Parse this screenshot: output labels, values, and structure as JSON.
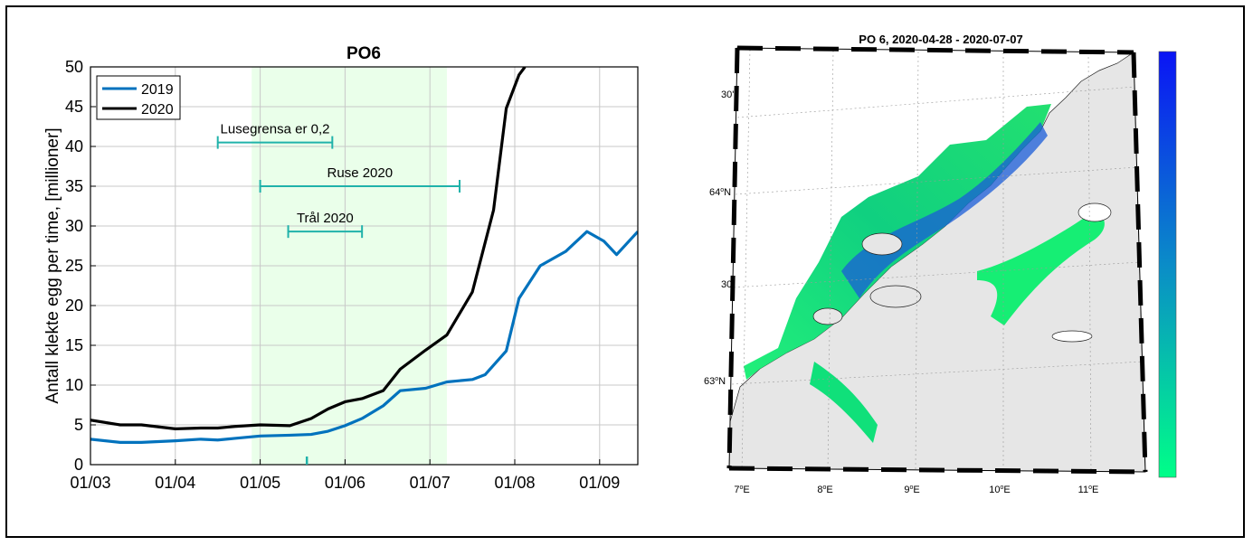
{
  "chart_data": [
    {
      "type": "line",
      "title": "PO6",
      "xlabel": "",
      "ylabel": "Antall klekte egg per time, [millioner]",
      "xlim": [
        0,
        6.45
      ],
      "ylim": [
        0,
        50
      ],
      "x_tick_labels": [
        "01/03",
        "01/04",
        "01/05",
        "01/06",
        "01/07",
        "01/08",
        "01/09"
      ],
      "y_tick_labels": [
        "0",
        "5",
        "10",
        "15",
        "20",
        "25",
        "30",
        "35",
        "40",
        "45",
        "50"
      ],
      "grid": true,
      "legend_position": "top-left",
      "series": [
        {
          "name": "2019",
          "color": "#0072bd",
          "x": [
            0,
            0.35,
            0.6,
            1.0,
            1.3,
            1.5,
            1.7,
            2.0,
            2.35,
            2.6,
            2.8,
            3.0,
            3.2,
            3.45,
            3.65,
            3.95,
            4.2,
            4.5,
            4.65,
            4.9,
            5.05,
            5.3,
            5.6,
            5.85,
            6.05,
            6.2,
            6.45
          ],
          "y": [
            3.2,
            2.8,
            2.8,
            3.0,
            3.2,
            3.1,
            3.3,
            3.6,
            3.7,
            3.8,
            4.2,
            4.9,
            5.8,
            7.4,
            9.3,
            9.6,
            10.4,
            10.7,
            11.3,
            14.3,
            20.9,
            25.0,
            26.8,
            29.3,
            28.1,
            26.4,
            29.3
          ]
        },
        {
          "name": "2020",
          "color": "#000000",
          "x": [
            0,
            0.35,
            0.6,
            1.0,
            1.3,
            1.5,
            1.7,
            2.0,
            2.35,
            2.6,
            2.8,
            3.0,
            3.2,
            3.45,
            3.65,
            3.95,
            4.2,
            4.5,
            4.75,
            4.9,
            5.05,
            5.12
          ],
          "y": [
            5.6,
            5.0,
            5.0,
            4.5,
            4.6,
            4.6,
            4.8,
            5.0,
            4.9,
            5.8,
            7.0,
            7.9,
            8.3,
            9.3,
            12.0,
            14.4,
            16.3,
            21.7,
            32.0,
            44.8,
            49.0,
            50.0
          ]
        }
      ],
      "shaded_period": {
        "x": [
          1.9,
          4.2
        ],
        "color": "#e6ffe6"
      },
      "intervals": [
        {
          "label": "Lusegrensa er 0,2",
          "x0": 1.5,
          "x1": 2.85,
          "y": 40.5
        },
        {
          "label": "Ruse 2020",
          "x0": 2.0,
          "x1": 4.35,
          "y": 35.0
        },
        {
          "label": "Trål 2020",
          "x0": 2.33,
          "x1": 3.2,
          "y": 29.3
        }
      ],
      "axis_marker_x": 2.55,
      "interval_color": "#20b2aa"
    },
    {
      "type": "map",
      "title": "PO 6, 2020-04-28 - 2020-07-07",
      "lon_tick_labels": [
        "7",
        "8",
        "9",
        "10",
        "11"
      ],
      "lat_tick_labels": [
        "64",
        "63"
      ],
      "minor_lat_labels": [
        "30'",
        "30'"
      ],
      "degree_suffix": "o",
      "lon_hemisphere": "E",
      "lat_hemisphere": "N",
      "colorbar": {
        "top_color": "#0a14f5",
        "bottom_color": "#00ff88"
      },
      "land_color": "#e6e6e6",
      "sea_color": "#ffffff"
    }
  ]
}
